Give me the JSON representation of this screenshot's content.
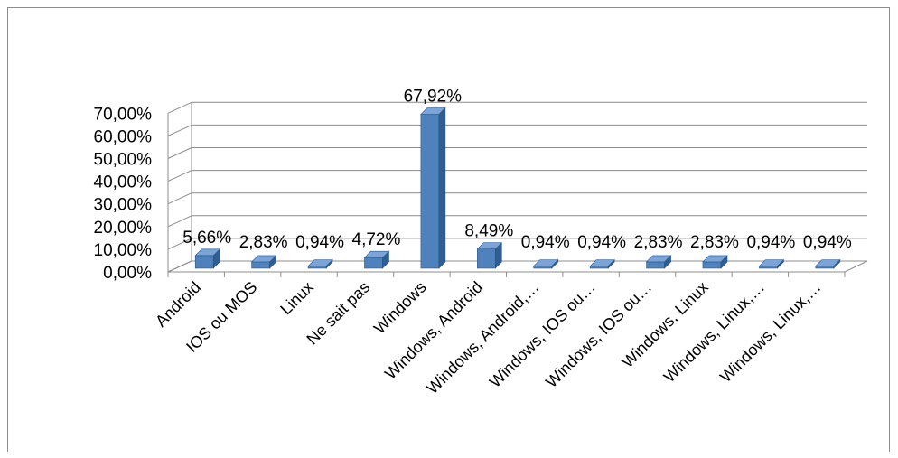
{
  "chart_data": {
    "type": "bar",
    "title": "",
    "xlabel": "",
    "ylabel": "",
    "ylim": [
      0,
      70
    ],
    "yticks": [
      "0,00%",
      "10,00%",
      "20,00%",
      "30,00%",
      "40,00%",
      "50,00%",
      "60,00%",
      "70,00%"
    ],
    "grid": true,
    "legend": "none",
    "bar_color": "#4f81bd",
    "categories": [
      "Android",
      "IOS ou MOS",
      "Linux",
      "Ne sait pas",
      "Windows",
      "Windows, Android",
      "Windows, Android,…",
      "Windows, IOS ou…",
      "Windows, IOS ou…",
      "Windows, Linux",
      "Windows, Linux,…",
      "Windows, Linux,…"
    ],
    "values": [
      5.66,
      2.83,
      0.94,
      4.72,
      67.92,
      8.49,
      0.94,
      0.94,
      2.83,
      2.83,
      0.94,
      0.94
    ],
    "data_labels": [
      "5,66%",
      "2,83%",
      "0,94%",
      "4,72%",
      "67,92%",
      "8,49%",
      "0,94%",
      "0,94%",
      "2,83%",
      "2,83%",
      "0,94%",
      "0,94%"
    ]
  }
}
